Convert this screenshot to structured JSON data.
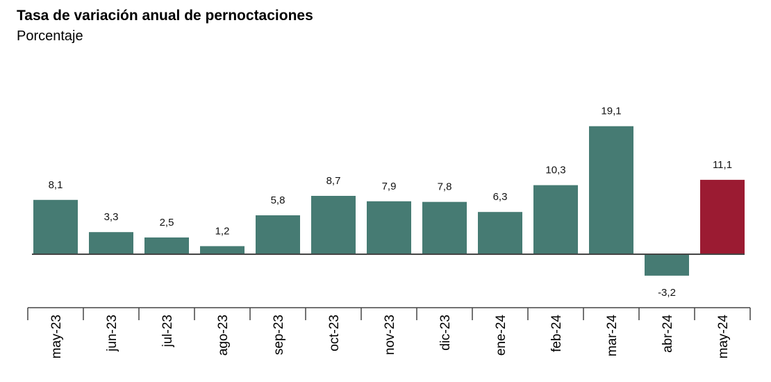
{
  "chart_data": {
    "type": "bar",
    "title": "Tasa de variación anual de pernoctaciones",
    "subtitle": "Porcentaje",
    "categories": [
      "may-23",
      "jun-23",
      "jul-23",
      "ago-23",
      "sep-23",
      "oct-23",
      "nov-23",
      "dic-23",
      "ene-24",
      "feb-24",
      "mar-24",
      "abr-24",
      "may-24"
    ],
    "values": [
      8.1,
      3.3,
      2.5,
      1.2,
      5.8,
      8.7,
      7.9,
      7.8,
      6.3,
      10.3,
      19.1,
      -3.2,
      11.1
    ],
    "value_labels": [
      "8,1",
      "3,3",
      "2,5",
      "1,2",
      "5,8",
      "8,7",
      "7,9",
      "7,8",
      "6,3",
      "10,3",
      "19,1",
      "-3,2",
      "11,1"
    ],
    "colors": {
      "default": "#467b73",
      "highlight": "#9b1b32",
      "highlight_index": 12
    },
    "grid": false,
    "legend": "none"
  }
}
